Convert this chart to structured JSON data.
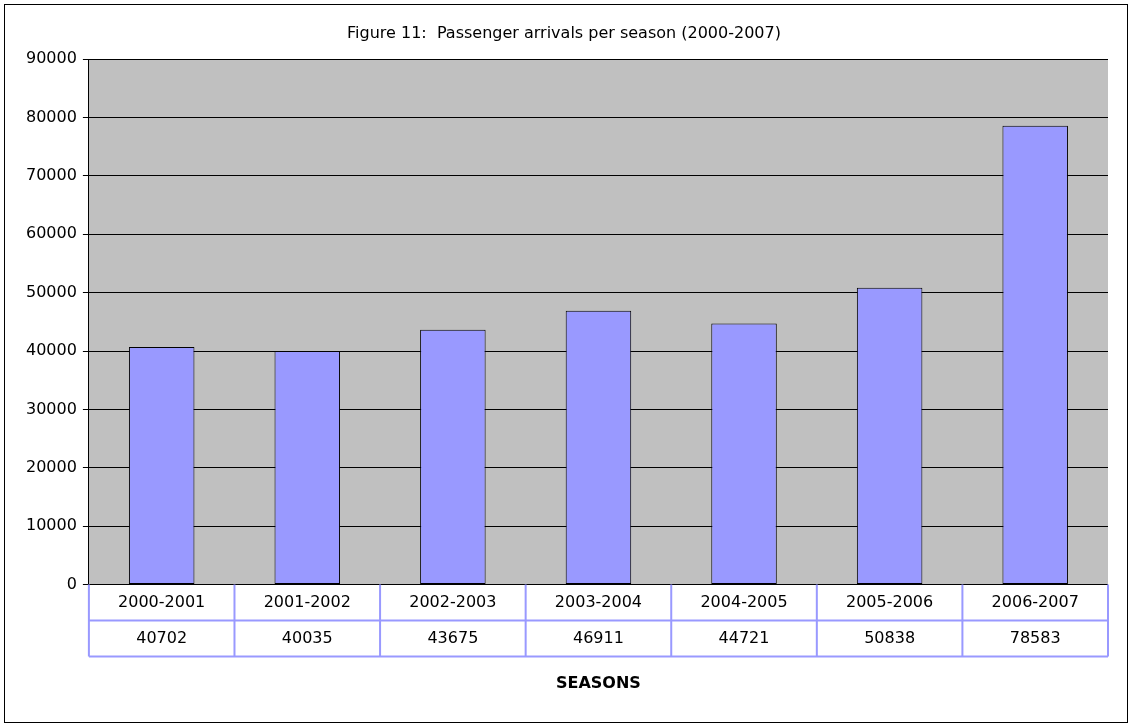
{
  "chart_data": {
    "type": "bar",
    "title": "Figure 11:  Passenger arrivals per season (2000-2007)",
    "xlabel": "SEASONS",
    "categories": [
      "2000-2001",
      "2001-2002",
      "2002-2003",
      "2003-2004",
      "2004-2005",
      "2005-2006",
      "2006-2007"
    ],
    "values": [
      40702,
      40035,
      43675,
      46911,
      44721,
      50838,
      78583
    ],
    "color": "#9999ff",
    "ylim": [
      0,
      90000
    ],
    "yticks": [
      0,
      10000,
      20000,
      30000,
      40000,
      50000,
      60000,
      70000,
      80000,
      90000
    ],
    "grid": "y",
    "legend": false,
    "data_labels": true
  }
}
